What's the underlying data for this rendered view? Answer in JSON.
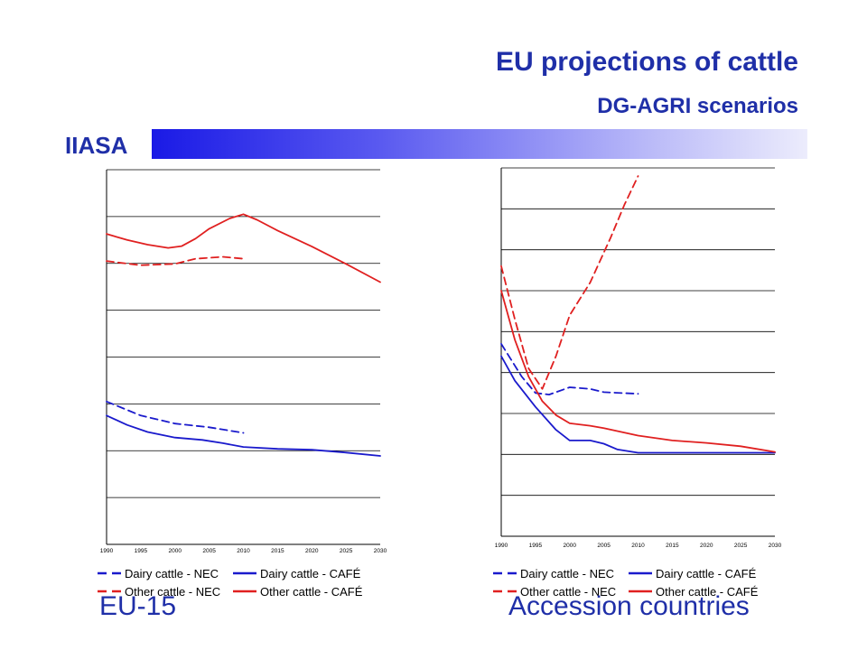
{
  "header": {
    "title": "EU projections of cattle",
    "subtitle": "DG-AGRI scenarios",
    "org": "IIASA"
  },
  "colors": {
    "title": "#1f2fa8",
    "dairy": "#1a1acc",
    "other": "#e02020",
    "grid": "#000000"
  },
  "legend": {
    "items": [
      {
        "label": "Dairy cattle - NEC",
        "series": "dairy",
        "dash": true
      },
      {
        "label": "Dairy cattle - CAFÉ",
        "series": "dairy",
        "dash": false
      },
      {
        "label": "Other cattle - NEC",
        "series": "other",
        "dash": true
      },
      {
        "label": "Other cattle - CAFÉ",
        "series": "other",
        "dash": false
      }
    ]
  },
  "regions": {
    "left": "EU-15",
    "right": "Accession countries"
  },
  "chart_data": [
    {
      "type": "line",
      "region": "EU-15",
      "title": "",
      "xlabel": "",
      "ylabel": "",
      "x_ticks": [
        1990,
        1995,
        2000,
        2005,
        2010,
        2015,
        2020,
        2025,
        2030
      ],
      "xlim": [
        1990,
        2030
      ],
      "ylim": [
        0,
        80
      ],
      "y_grid_step": 10,
      "series": [
        {
          "name": "Dairy cattle - NEC",
          "color": "#1a1acc",
          "dash": true,
          "points": [
            [
              1990,
              30.5
            ],
            [
              1995,
              27.5
            ],
            [
              2000,
              25.8
            ],
            [
              2005,
              25.0
            ],
            [
              2010,
              23.8
            ]
          ]
        },
        {
          "name": "Dairy cattle - CAFÉ",
          "color": "#1a1acc",
          "dash": false,
          "points": [
            [
              1990,
              27.5
            ],
            [
              1993,
              25.5
            ],
            [
              1996,
              24.0
            ],
            [
              2000,
              22.8
            ],
            [
              2004,
              22.3
            ],
            [
              2007,
              21.6
            ],
            [
              2010,
              20.8
            ],
            [
              2015,
              20.4
            ],
            [
              2020,
              20.2
            ],
            [
              2025,
              19.6
            ],
            [
              2030,
              18.9
            ]
          ]
        },
        {
          "name": "Other cattle - NEC",
          "color": "#e02020",
          "dash": true,
          "points": [
            [
              1990,
              60.5
            ],
            [
              1995,
              59.6
            ],
            [
              2000,
              59.9
            ],
            [
              2003,
              61.0
            ],
            [
              2007,
              61.4
            ],
            [
              2010,
              61.0
            ]
          ]
        },
        {
          "name": "Other cattle - CAFÉ",
          "color": "#e02020",
          "dash": false,
          "points": [
            [
              1990,
              66.3
            ],
            [
              1993,
              65.0
            ],
            [
              1996,
              64.0
            ],
            [
              1999,
              63.3
            ],
            [
              2001,
              63.7
            ],
            [
              2003,
              65.3
            ],
            [
              2005,
              67.4
            ],
            [
              2008,
              69.6
            ],
            [
              2010,
              70.5
            ],
            [
              2012,
              69.3
            ],
            [
              2015,
              67.0
            ],
            [
              2020,
              63.6
            ],
            [
              2025,
              59.9
            ],
            [
              2030,
              56.0
            ]
          ]
        }
      ]
    },
    {
      "type": "line",
      "region": "Accession countries",
      "title": "",
      "xlabel": "",
      "ylabel": "",
      "x_ticks": [
        1990,
        1995,
        2000,
        2005,
        2010,
        2015,
        2020,
        2025,
        2030
      ],
      "xlim": [
        1990,
        2030
      ],
      "ylim": [
        0,
        45
      ],
      "y_grid_step": 5,
      "series": [
        {
          "name": "Dairy cattle - NEC",
          "color": "#1a1acc",
          "dash": true,
          "points": [
            [
              1990,
              23.5
            ],
            [
              1993,
              19.5
            ],
            [
              1995,
              17.5
            ],
            [
              1997,
              17.3
            ],
            [
              2000,
              18.2
            ],
            [
              2003,
              18.0
            ],
            [
              2005,
              17.6
            ],
            [
              2010,
              17.4
            ]
          ]
        },
        {
          "name": "Dairy cattle - CAFÉ",
          "color": "#1a1acc",
          "dash": false,
          "points": [
            [
              1990,
              22.0
            ],
            [
              1992,
              19.0
            ],
            [
              1995,
              15.8
            ],
            [
              1998,
              13.0
            ],
            [
              2000,
              11.7
            ],
            [
              2003,
              11.7
            ],
            [
              2005,
              11.3
            ],
            [
              2007,
              10.6
            ],
            [
              2010,
              10.2
            ],
            [
              2015,
              10.2
            ],
            [
              2020,
              10.2
            ],
            [
              2025,
              10.2
            ],
            [
              2030,
              10.2
            ]
          ]
        },
        {
          "name": "Other cattle - NEC",
          "color": "#e02020",
          "dash": true,
          "points": [
            [
              1990,
              33.0
            ],
            [
              1992,
              26.5
            ],
            [
              1994,
              20.5
            ],
            [
              1996,
              18.0
            ],
            [
              1998,
              22.0
            ],
            [
              2000,
              27.0
            ],
            [
              2003,
              31.0
            ],
            [
              2006,
              36.5
            ],
            [
              2008,
              40.5
            ],
            [
              2010,
              44.0
            ]
          ]
        },
        {
          "name": "Other cattle - CAFÉ",
          "color": "#e02020",
          "dash": false,
          "points": [
            [
              1990,
              30.0
            ],
            [
              1992,
              24.0
            ],
            [
              1994,
              19.5
            ],
            [
              1996,
              16.5
            ],
            [
              1998,
              14.8
            ],
            [
              2000,
              13.8
            ],
            [
              2003,
              13.5
            ],
            [
              2005,
              13.2
            ],
            [
              2010,
              12.3
            ],
            [
              2015,
              11.7
            ],
            [
              2020,
              11.4
            ],
            [
              2025,
              11.0
            ],
            [
              2030,
              10.3
            ]
          ]
        }
      ]
    }
  ]
}
